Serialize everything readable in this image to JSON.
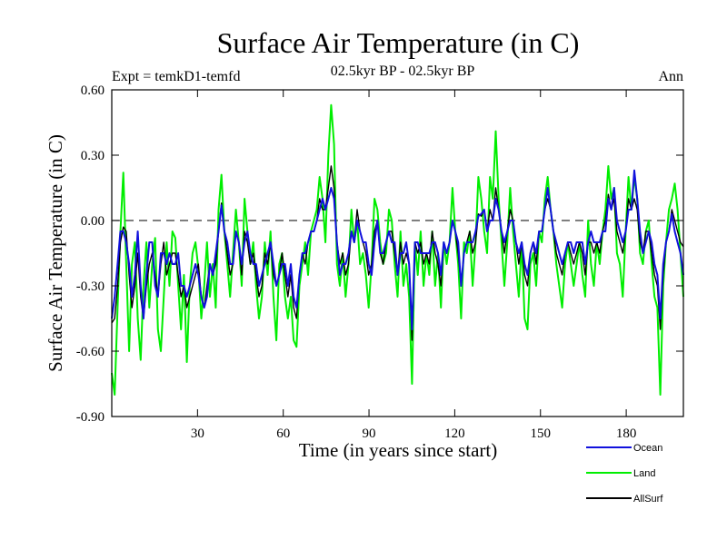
{
  "chart_data": {
    "type": "line",
    "title": "Surface Air Temperature (in C)",
    "subtitle": "02.5kyr BP - 02.5kyr BP",
    "left_label": "Expt = temkD1-temfd",
    "right_label": "Ann",
    "xlabel": "Time (in years since start)",
    "ylabel": "Surface Air Temperature (in C)",
    "xlim": [
      0,
      200
    ],
    "ylim": [
      -0.9,
      0.6
    ],
    "xticks": [
      30,
      60,
      90,
      120,
      150,
      180
    ],
    "xtick_labels": [
      "30",
      "60",
      "90",
      "120",
      "150",
      "180"
    ],
    "yticks": [
      -0.9,
      -0.6,
      -0.3,
      0.0,
      0.3,
      0.6
    ],
    "ytick_labels": [
      "-0.90",
      "-0.60",
      "-0.30",
      "0.00",
      "0.30",
      "0.60"
    ],
    "zero_line": 0.0,
    "legend_position": "bottom-right",
    "series": [
      {
        "name": "Land",
        "color": "#00ee00",
        "values": [
          -0.7,
          -0.8,
          -0.4,
          -0.05,
          0.22,
          -0.2,
          -0.6,
          -0.2,
          -0.1,
          -0.45,
          -0.64,
          -0.3,
          -0.1,
          -0.4,
          -0.2,
          -0.08,
          -0.5,
          -0.6,
          -0.35,
          -0.1,
          -0.3,
          -0.05,
          -0.08,
          -0.3,
          -0.5,
          -0.25,
          -0.65,
          -0.3,
          -0.15,
          -0.1,
          -0.22,
          -0.45,
          -0.3,
          -0.1,
          -0.35,
          -0.2,
          -0.4,
          0.05,
          0.21,
          -0.05,
          -0.2,
          -0.35,
          -0.15,
          0.05,
          -0.1,
          -0.3,
          0.1,
          -0.05,
          -0.2,
          -0.1,
          -0.3,
          -0.45,
          -0.35,
          -0.1,
          -0.25,
          -0.05,
          -0.35,
          -0.55,
          -0.2,
          -0.15,
          -0.35,
          -0.45,
          -0.35,
          -0.55,
          -0.58,
          -0.3,
          -0.2,
          -0.1,
          -0.25,
          -0.05,
          0.0,
          0.05,
          0.2,
          0.1,
          -0.1,
          0.3,
          0.53,
          0.35,
          -0.2,
          -0.3,
          -0.15,
          -0.35,
          -0.2,
          0.05,
          -0.1,
          0.0,
          -0.2,
          -0.15,
          -0.25,
          -0.4,
          -0.2,
          0.1,
          0.05,
          -0.1,
          -0.2,
          -0.15,
          0.05,
          0.0,
          -0.2,
          -0.35,
          -0.05,
          -0.3,
          -0.2,
          -0.35,
          -0.75,
          -0.1,
          -0.25,
          -0.05,
          -0.3,
          -0.15,
          -0.25,
          -0.05,
          -0.3,
          -0.15,
          -0.4,
          -0.1,
          -0.2,
          -0.1,
          0.15,
          -0.05,
          -0.2,
          -0.45,
          -0.1,
          -0.15,
          -0.05,
          -0.3,
          -0.1,
          0.2,
          0.1,
          -0.05,
          -0.15,
          0.2,
          0.1,
          0.41,
          0.1,
          -0.1,
          -0.3,
          -0.1,
          0.15,
          -0.05,
          -0.2,
          -0.35,
          -0.1,
          -0.45,
          -0.5,
          -0.2,
          -0.15,
          -0.3,
          -0.05,
          -0.1,
          0.1,
          0.2,
          0.05,
          -0.05,
          -0.2,
          -0.3,
          -0.4,
          -0.2,
          -0.1,
          -0.2,
          -0.3,
          -0.2,
          -0.1,
          -0.25,
          -0.35,
          0.0,
          -0.2,
          -0.3,
          -0.1,
          -0.2,
          -0.05,
          0.05,
          0.25,
          0.1,
          0.15,
          -0.15,
          -0.2,
          -0.35,
          -0.05,
          0.2,
          0.05,
          0.2,
          0.1,
          -0.15,
          -0.2,
          -0.05,
          0.0,
          -0.2,
          -0.35,
          -0.4,
          -0.8,
          -0.3,
          -0.1,
          0.05,
          0.1,
          0.17,
          0.05,
          -0.15,
          -0.35
        ]
      },
      {
        "name": "AllSurf",
        "color": "#000000",
        "values": [
          -0.47,
          -0.45,
          -0.3,
          -0.1,
          -0.03,
          -0.05,
          -0.25,
          -0.4,
          -0.3,
          -0.15,
          -0.35,
          -0.45,
          -0.3,
          -0.2,
          -0.15,
          -0.25,
          -0.35,
          -0.2,
          -0.1,
          -0.25,
          -0.2,
          -0.15,
          -0.15,
          -0.25,
          -0.35,
          -0.3,
          -0.4,
          -0.35,
          -0.3,
          -0.25,
          -0.2,
          -0.35,
          -0.4,
          -0.3,
          -0.2,
          -0.25,
          -0.2,
          -0.05,
          0.08,
          -0.05,
          -0.15,
          -0.25,
          -0.2,
          -0.05,
          -0.1,
          -0.25,
          -0.05,
          -0.1,
          -0.2,
          -0.15,
          -0.25,
          -0.35,
          -0.3,
          -0.15,
          -0.2,
          -0.1,
          -0.25,
          -0.3,
          -0.25,
          -0.15,
          -0.25,
          -0.35,
          -0.25,
          -0.4,
          -0.45,
          -0.25,
          -0.15,
          -0.2,
          -0.1,
          -0.05,
          -0.05,
          0.0,
          0.1,
          0.05,
          0.05,
          0.15,
          0.25,
          0.15,
          -0.1,
          -0.2,
          -0.15,
          -0.25,
          -0.2,
          -0.05,
          -0.1,
          0.05,
          -0.05,
          -0.1,
          -0.15,
          -0.25,
          -0.2,
          -0.05,
          0.0,
          -0.15,
          -0.2,
          -0.1,
          -0.05,
          -0.05,
          -0.15,
          -0.25,
          -0.1,
          -0.2,
          -0.15,
          -0.2,
          -0.55,
          -0.1,
          -0.15,
          -0.1,
          -0.2,
          -0.15,
          -0.2,
          -0.05,
          -0.15,
          -0.2,
          -0.3,
          -0.1,
          -0.15,
          -0.1,
          0.0,
          -0.05,
          -0.15,
          -0.3,
          -0.15,
          -0.1,
          -0.05,
          -0.15,
          -0.1,
          0.03,
          0.02,
          0.05,
          -0.05,
          0.05,
          0.0,
          0.15,
          0.05,
          -0.05,
          -0.15,
          -0.05,
          0.05,
          0.0,
          -0.1,
          -0.2,
          -0.1,
          -0.25,
          -0.3,
          -0.15,
          -0.1,
          -0.2,
          -0.05,
          -0.05,
          0.05,
          0.1,
          0.05,
          -0.05,
          -0.15,
          -0.2,
          -0.25,
          -0.15,
          -0.1,
          -0.15,
          -0.2,
          -0.15,
          -0.1,
          -0.15,
          -0.25,
          -0.1,
          -0.1,
          -0.15,
          -0.1,
          -0.15,
          -0.05,
          0.0,
          0.12,
          0.05,
          0.1,
          -0.05,
          -0.1,
          -0.15,
          -0.05,
          0.1,
          0.05,
          0.1,
          0.05,
          -0.1,
          -0.15,
          -0.05,
          -0.05,
          -0.15,
          -0.25,
          -0.3,
          -0.5,
          -0.25,
          -0.1,
          -0.05,
          0.05,
          0.0,
          -0.05,
          -0.1,
          -0.12
        ]
      },
      {
        "name": "Ocean",
        "color": "#1111dd",
        "values": [
          -0.45,
          -0.35,
          -0.2,
          -0.05,
          -0.05,
          -0.1,
          -0.2,
          -0.35,
          -0.25,
          -0.05,
          -0.3,
          -0.45,
          -0.25,
          -0.1,
          -0.1,
          -0.3,
          -0.35,
          -0.15,
          -0.15,
          -0.2,
          -0.15,
          -0.2,
          -0.2,
          -0.15,
          -0.3,
          -0.3,
          -0.35,
          -0.3,
          -0.25,
          -0.2,
          -0.25,
          -0.35,
          -0.4,
          -0.35,
          -0.2,
          -0.25,
          -0.15,
          -0.05,
          0.07,
          -0.05,
          -0.1,
          -0.2,
          -0.2,
          -0.05,
          -0.1,
          -0.2,
          -0.1,
          -0.05,
          -0.15,
          -0.2,
          -0.2,
          -0.3,
          -0.25,
          -0.2,
          -0.15,
          -0.1,
          -0.2,
          -0.3,
          -0.25,
          -0.2,
          -0.2,
          -0.3,
          -0.2,
          -0.35,
          -0.4,
          -0.25,
          -0.15,
          -0.15,
          -0.1,
          -0.05,
          -0.05,
          0.0,
          0.05,
          0.1,
          0.05,
          0.1,
          0.15,
          0.1,
          -0.1,
          -0.25,
          -0.2,
          -0.2,
          -0.15,
          -0.05,
          -0.1,
          0.0,
          -0.05,
          -0.1,
          -0.1,
          -0.2,
          -0.25,
          -0.1,
          0.0,
          -0.15,
          -0.15,
          -0.1,
          -0.05,
          -0.1,
          -0.1,
          -0.25,
          -0.15,
          -0.15,
          -0.1,
          -0.2,
          -0.5,
          -0.1,
          -0.1,
          -0.15,
          -0.15,
          -0.15,
          -0.15,
          -0.1,
          -0.1,
          -0.15,
          -0.25,
          -0.1,
          -0.15,
          -0.1,
          0.0,
          -0.05,
          -0.1,
          -0.3,
          -0.15,
          -0.1,
          -0.1,
          -0.1,
          -0.05,
          0.02,
          0.03,
          0.05,
          -0.05,
          0.0,
          0.0,
          0.1,
          0.05,
          -0.05,
          -0.1,
          -0.05,
          0.0,
          0.0,
          -0.1,
          -0.15,
          -0.1,
          -0.2,
          -0.25,
          -0.15,
          -0.1,
          -0.15,
          -0.05,
          -0.05,
          0.05,
          0.15,
          0.05,
          -0.05,
          -0.1,
          -0.15,
          -0.2,
          -0.15,
          -0.1,
          -0.1,
          -0.15,
          -0.1,
          -0.1,
          -0.1,
          -0.2,
          -0.1,
          -0.05,
          -0.1,
          -0.1,
          -0.1,
          -0.05,
          -0.05,
          0.1,
          0.05,
          0.15,
          0.0,
          -0.05,
          -0.1,
          -0.05,
          0.05,
          0.05,
          0.23,
          0.1,
          -0.05,
          -0.15,
          -0.1,
          -0.05,
          -0.1,
          -0.2,
          -0.25,
          -0.45,
          -0.2,
          -0.1,
          -0.05,
          0.03,
          -0.05,
          -0.1,
          -0.15,
          -0.25
        ]
      }
    ],
    "legend": [
      {
        "name": "Ocean",
        "color": "#1111dd"
      },
      {
        "name": "Land",
        "color": "#00ee00"
      },
      {
        "name": "AllSurf",
        "color": "#000000"
      }
    ]
  }
}
